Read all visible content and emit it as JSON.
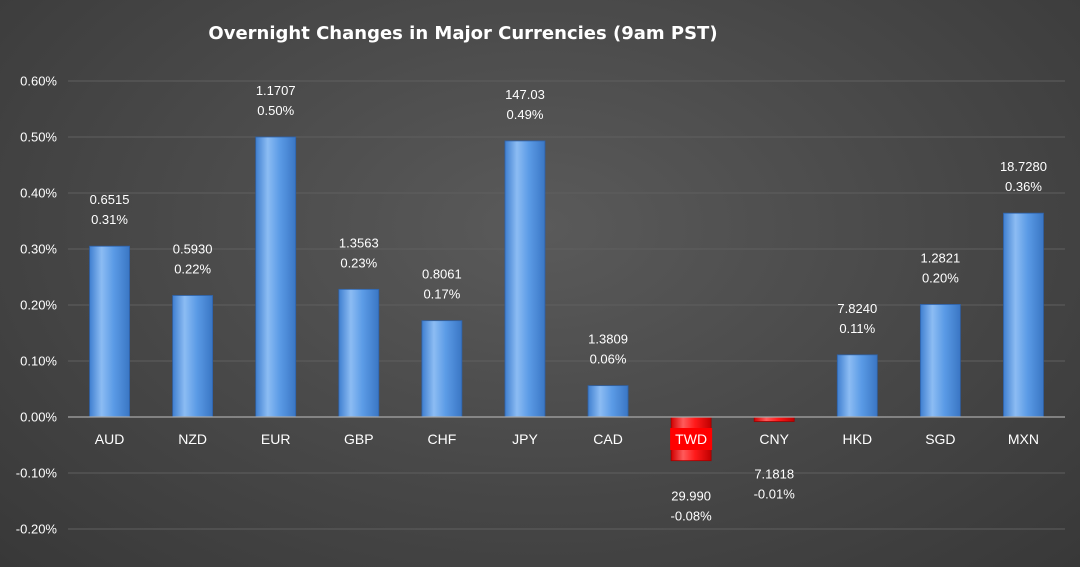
{
  "chart_data": {
    "type": "bar",
    "title": "Overnight Changes in Major Currencies (9am PST)",
    "xlabel": "",
    "ylabel": "",
    "ylim": [
      -0.002,
      0.006
    ],
    "yticks": [
      -0.002,
      -0.001,
      0,
      0.001,
      0.002,
      0.003,
      0.004,
      0.005,
      0.006
    ],
    "ytick_labels": [
      "-0.20%",
      "-0.10%",
      "0.00%",
      "0.10%",
      "0.20%",
      "0.30%",
      "0.40%",
      "0.50%",
      "0.60%"
    ],
    "grid": true,
    "legend": "none",
    "categories": [
      "AUD",
      "NZD",
      "EUR",
      "GBP",
      "CHF",
      "JPY",
      "CAD",
      "TWD",
      "CNY",
      "HKD",
      "SGD",
      "MXN"
    ],
    "values": [
      0.00305,
      0.00217,
      0.005,
      0.00228,
      0.00172,
      0.00493,
      0.00056,
      -0.00078,
      -8e-05,
      0.00111,
      0.00201,
      0.00364
    ],
    "rates": [
      "0.6515",
      "0.5930",
      "1.1707",
      "1.3563",
      "0.8061",
      "147.03",
      "1.3809",
      "29.990",
      "7.1818",
      "7.8240",
      "1.2821",
      "18.7280"
    ],
    "pct_labels": [
      "0.31%",
      "0.22%",
      "0.50%",
      "0.23%",
      "0.17%",
      "0.49%",
      "0.06%",
      "-0.08%",
      "-0.01%",
      "0.11%",
      "0.20%",
      "0.36%"
    ],
    "colors": {
      "positive": "#5b9be6",
      "positive_light": "#93c0f4",
      "negative": "#ff0000",
      "negative_light": "#ff6a6a",
      "highlight_label_bg": "#ff0000"
    },
    "highlight_category": "TWD"
  }
}
